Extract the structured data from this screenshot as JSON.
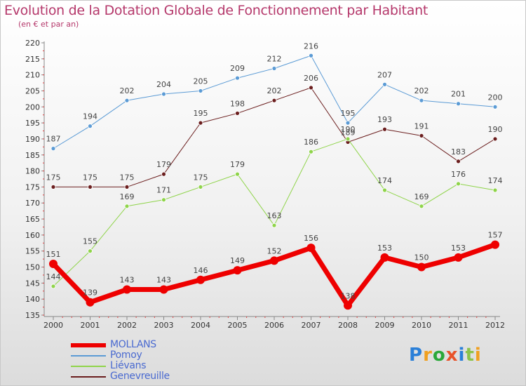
{
  "title": "Evolution de la Dotation Globale de Fonctionnement par Habitant",
  "subtitle": "(en € et par an)",
  "brand": {
    "text": "Proxiti",
    "letters": [
      "P",
      "r",
      "o",
      "x",
      "i",
      "t",
      "i"
    ],
    "colors": [
      "#2a7fd8",
      "#f0a020",
      "#2aa83a",
      "#e8532a",
      "#2a7fd8",
      "#8bc34a",
      "#f0a020"
    ]
  },
  "chart_data": {
    "type": "line",
    "title": "Evolution de la Dotation Globale de Fonctionnement par Habitant",
    "subtitle": "(en € et par an)",
    "xlabel": "",
    "ylabel": "",
    "ylim": [
      135,
      220
    ],
    "yticks": [
      135,
      140,
      145,
      150,
      155,
      160,
      165,
      170,
      175,
      180,
      185,
      190,
      195,
      200,
      205,
      210,
      215,
      220
    ],
    "categories": [
      "2000",
      "2001",
      "2002",
      "2003",
      "2004",
      "2005",
      "2006",
      "2007",
      "2008",
      "2009",
      "2010",
      "2011",
      "2012"
    ],
    "grid": false,
    "legend_position": "bottom-left",
    "series": [
      {
        "name": "Pomoy",
        "color": "#5b9bd5",
        "width": 1,
        "marker": 3,
        "values": [
          187,
          194,
          202,
          204,
          205,
          209,
          212,
          216,
          195,
          207,
          202,
          201,
          200
        ],
        "labels": [
          "187",
          "194",
          "202",
          "204",
          "205",
          "209",
          "212",
          "216",
          "195",
          "207",
          "202",
          "201",
          "200"
        ]
      },
      {
        "name": "Genevreuille",
        "color": "#6b1e1e",
        "width": 1,
        "marker": 3,
        "values": [
          175,
          175,
          175,
          179,
          195,
          198,
          202,
          206,
          189,
          193,
          191,
          183,
          190
        ],
        "labels": [
          "175",
          "175",
          "175",
          "179",
          "195",
          "198",
          "202",
          "206",
          "189",
          "193",
          "191",
          "183",
          "190"
        ]
      },
      {
        "name": "Liévans",
        "color": "#8fd44a",
        "width": 1,
        "marker": 3,
        "values": [
          144,
          155,
          169,
          171,
          175,
          179,
          163,
          186,
          190,
          174,
          169,
          176,
          174
        ],
        "labels": [
          "144",
          "155",
          "169",
          "171",
          "175",
          "179",
          "163",
          "186",
          "190",
          "174",
          "169",
          "176",
          "174"
        ]
      },
      {
        "name": "MOLLANS",
        "color": "#ee0000",
        "width": 7,
        "marker": 6,
        "values": [
          151,
          139,
          143,
          143,
          146,
          149,
          152,
          156,
          138,
          153,
          150,
          153,
          157
        ],
        "labels": [
          "151",
          "139",
          "143",
          "143",
          "146",
          "149",
          "152",
          "156",
          "138",
          "153",
          "150",
          "153",
          "157"
        ]
      }
    ],
    "legend_order": [
      "MOLLANS",
      "Pomoy",
      "Liévans",
      "Genevreuille"
    ]
  }
}
